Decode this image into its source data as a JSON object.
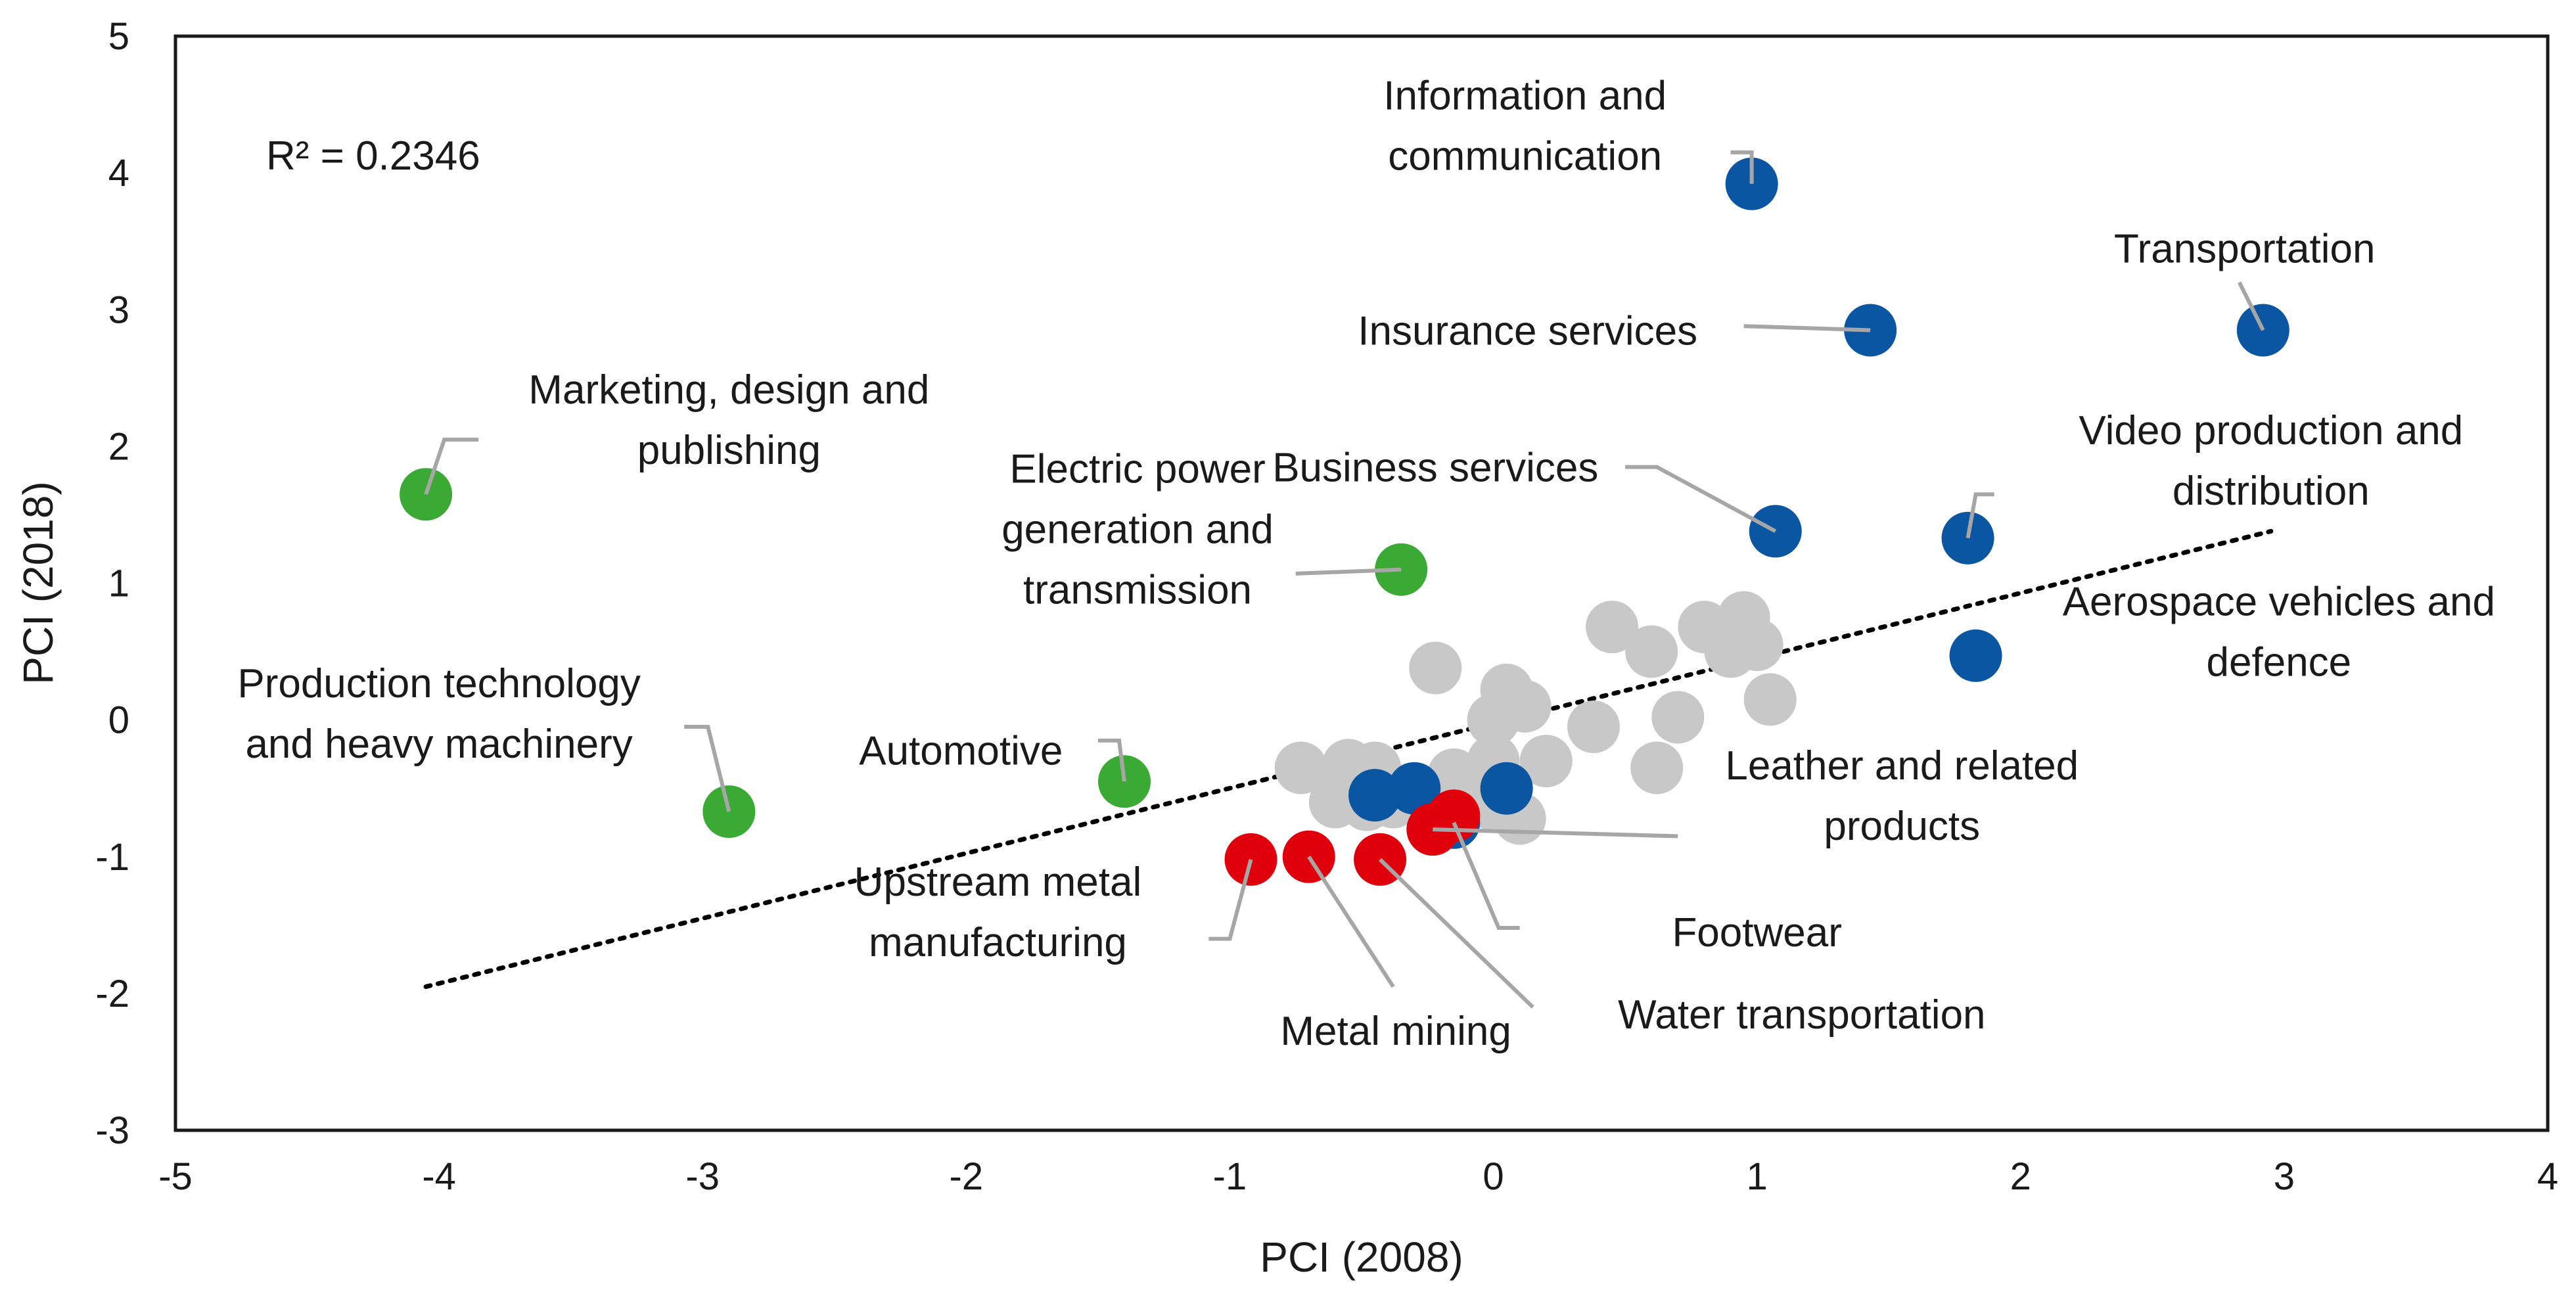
{
  "chart_data": {
    "type": "scatter",
    "xlabel": "PCI (2008)",
    "ylabel": "PCI (2018)",
    "xlim": [
      -5,
      4
    ],
    "ylim": [
      -3,
      5
    ],
    "xticks": [
      "-5",
      "-4",
      "-3",
      "-2",
      "-1",
      "0",
      "1",
      "2",
      "3",
      "4"
    ],
    "yticks": [
      "-3",
      "-2",
      "-1",
      "0",
      "1",
      "2",
      "3",
      "4",
      "5"
    ],
    "grid": false,
    "legend": "none",
    "r_squared_label": "R² = 0.2346",
    "trendline": {
      "style": "dotted",
      "x": [
        -4.05,
        2.95
      ],
      "y": [
        -1.95,
        1.38
      ]
    },
    "colors": {
      "blue": "#0b56a3",
      "green": "#3aaa35",
      "red": "#e0000b",
      "gray": "#c8c8c8",
      "leader": "#a6a6a6",
      "trend": "#000000"
    },
    "series": [
      {
        "name": "gray",
        "color": "#c8c8c8",
        "points": [
          {
            "x": -0.22,
            "y": 0.38
          },
          {
            "x": 0.45,
            "y": 0.68
          },
          {
            "x": 0.6,
            "y": 0.5
          },
          {
            "x": 0.8,
            "y": 0.68
          },
          {
            "x": 0.95,
            "y": 0.75
          },
          {
            "x": 0.9,
            "y": 0.5
          },
          {
            "x": 1.0,
            "y": 0.55
          },
          {
            "x": 0.05,
            "y": 0.22
          },
          {
            "x": 0.12,
            "y": 0.1
          },
          {
            "x": 0.0,
            "y": 0.0
          },
          {
            "x": 0.38,
            "y": -0.05
          },
          {
            "x": 0.7,
            "y": 0.02
          },
          {
            "x": 1.05,
            "y": 0.15
          },
          {
            "x": 0.62,
            "y": -0.35
          },
          {
            "x": -0.73,
            "y": -0.35
          },
          {
            "x": -0.55,
            "y": -0.33
          },
          {
            "x": -0.45,
            "y": -0.35
          },
          {
            "x": -0.15,
            "y": -0.4
          },
          {
            "x": 0.0,
            "y": -0.3
          },
          {
            "x": 0.2,
            "y": -0.3
          },
          {
            "x": -0.6,
            "y": -0.6
          },
          {
            "x": -0.48,
            "y": -0.62
          },
          {
            "x": -0.38,
            "y": -0.6
          },
          {
            "x": 0.0,
            "y": -0.62
          },
          {
            "x": 0.1,
            "y": -0.72
          }
        ]
      },
      {
        "name": "blue",
        "color": "#0b56a3",
        "points": [
          {
            "x": 0.98,
            "y": 3.92,
            "label": "Information and communication"
          },
          {
            "x": 1.43,
            "y": 2.85,
            "label": "Insurance services"
          },
          {
            "x": 2.92,
            "y": 2.85,
            "label": "Transportation"
          },
          {
            "x": 1.07,
            "y": 1.38,
            "label": "Business services"
          },
          {
            "x": 1.8,
            "y": 1.33,
            "label": "Video production and distribution"
          },
          {
            "x": 1.83,
            "y": 0.47,
            "label": "Aerospace vehicles and defence"
          },
          {
            "x": -0.3,
            "y": -0.5,
            "label": ""
          },
          {
            "x": -0.45,
            "y": -0.55,
            "label": ""
          },
          {
            "x": 0.05,
            "y": -0.5,
            "label": ""
          },
          {
            "x": -0.15,
            "y": -0.75,
            "label": "Footwear"
          }
        ]
      },
      {
        "name": "green",
        "color": "#3aaa35",
        "points": [
          {
            "x": -4.05,
            "y": 1.65,
            "label": "Marketing, design and publishing"
          },
          {
            "x": -0.35,
            "y": 1.1,
            "label": "Electric power generation and transmission"
          },
          {
            "x": -2.9,
            "y": -0.67,
            "label": "Production technology and heavy machinery"
          },
          {
            "x": -1.4,
            "y": -0.45,
            "label": "Automotive"
          }
        ]
      },
      {
        "name": "red",
        "color": "#e0000b",
        "points": [
          {
            "x": -0.92,
            "y": -1.02,
            "label": "Upstream metal manufacturing"
          },
          {
            "x": -0.7,
            "y": -1.0,
            "label": "Metal mining"
          },
          {
            "x": -0.43,
            "y": -1.02,
            "label": "Water transportation"
          },
          {
            "x": -0.23,
            "y": -0.8,
            "label": "Leather and related products"
          },
          {
            "x": -0.15,
            "y": -0.7,
            "label": ""
          }
        ]
      }
    ],
    "annotations": [
      {
        "lines": [
          "Information and",
          "communication"
        ],
        "text_x": 0.12,
        "text_y": 4.35,
        "anchor": "middle",
        "leader": [
          [
            0.9,
            4.15
          ],
          [
            0.98,
            4.15
          ],
          [
            0.98,
            3.92
          ]
        ]
      },
      {
        "lines": [
          "Insurance services"
        ],
        "text_x": 0.13,
        "text_y": 2.85,
        "anchor": "middle",
        "leader": [
          [
            0.95,
            2.88
          ],
          [
            1.43,
            2.85
          ]
        ]
      },
      {
        "lines": [
          "Transportation"
        ],
        "text_x": 2.85,
        "text_y": 3.45,
        "anchor": "middle",
        "leader": [
          [
            2.83,
            3.2
          ],
          [
            2.92,
            2.85
          ]
        ]
      },
      {
        "lines": [
          "Business services"
        ],
        "text_x": -0.22,
        "text_y": 1.85,
        "anchor": "middle",
        "leader": [
          [
            0.5,
            1.85
          ],
          [
            0.62,
            1.85
          ],
          [
            1.07,
            1.38
          ]
        ]
      },
      {
        "lines": [
          "Video production and",
          "distribution"
        ],
        "text_x": 2.95,
        "text_y": 1.9,
        "anchor": "middle",
        "leader": [
          [
            1.9,
            1.65
          ],
          [
            1.83,
            1.65
          ],
          [
            1.8,
            1.33
          ]
        ]
      },
      {
        "lines": [
          "Aerospace vehicles and",
          "defence"
        ],
        "text_x": 2.98,
        "text_y": 0.65,
        "anchor": "middle",
        "leader": []
      },
      {
        "lines": [
          "Marketing, design and",
          "publishing"
        ],
        "text_x": -2.9,
        "text_y": 2.2,
        "anchor": "middle",
        "leader": [
          [
            -3.85,
            2.05
          ],
          [
            -3.98,
            2.05
          ],
          [
            -4.05,
            1.65
          ]
        ]
      },
      {
        "lines": [
          "Electric power",
          "generation and",
          "transmission"
        ],
        "text_x": -1.35,
        "text_y": 1.4,
        "anchor": "middle",
        "leader": [
          [
            -0.75,
            1.07
          ],
          [
            -0.35,
            1.1
          ]
        ]
      },
      {
        "lines": [
          "Production technology",
          "and heavy machinery"
        ],
        "text_x": -4.0,
        "text_y": 0.05,
        "anchor": "middle",
        "leader": [
          [
            -3.07,
            -0.05
          ],
          [
            -2.98,
            -0.05
          ],
          [
            -2.9,
            -0.67
          ]
        ]
      },
      {
        "lines": [
          "Automotive"
        ],
        "text_x": -2.02,
        "text_y": -0.22,
        "anchor": "middle",
        "leader": [
          [
            -1.5,
            -0.15
          ],
          [
            -1.42,
            -0.15
          ],
          [
            -1.4,
            -0.45
          ]
        ]
      },
      {
        "lines": [
          "Leather and related",
          "products"
        ],
        "text_x": 1.55,
        "text_y": -0.55,
        "anchor": "middle",
        "leader": [
          [
            0.7,
            -0.85
          ],
          [
            -0.23,
            -0.8
          ]
        ]
      },
      {
        "lines": [
          "Footwear"
        ],
        "text_x": 1.0,
        "text_y": -1.55,
        "anchor": "middle",
        "leader": [
          [
            0.1,
            -1.52
          ],
          [
            0.02,
            -1.52
          ],
          [
            -0.15,
            -0.75
          ]
        ]
      },
      {
        "lines": [
          "Upstream metal",
          "manufacturing"
        ],
        "text_x": -1.88,
        "text_y": -1.4,
        "anchor": "middle",
        "leader": [
          [
            -1.08,
            -1.6
          ],
          [
            -1.0,
            -1.6
          ],
          [
            -0.92,
            -1.02
          ]
        ]
      },
      {
        "lines": [
          "Metal mining"
        ],
        "text_x": -0.37,
        "text_y": -2.27,
        "anchor": "middle",
        "leader": [
          [
            -0.38,
            -1.95
          ],
          [
            -0.7,
            -1.0
          ]
        ]
      },
      {
        "lines": [
          "Water transportation"
        ],
        "text_x": 1.17,
        "text_y": -2.15,
        "anchor": "middle",
        "leader": [
          [
            0.15,
            -2.1
          ],
          [
            -0.43,
            -1.02
          ]
        ]
      }
    ]
  }
}
